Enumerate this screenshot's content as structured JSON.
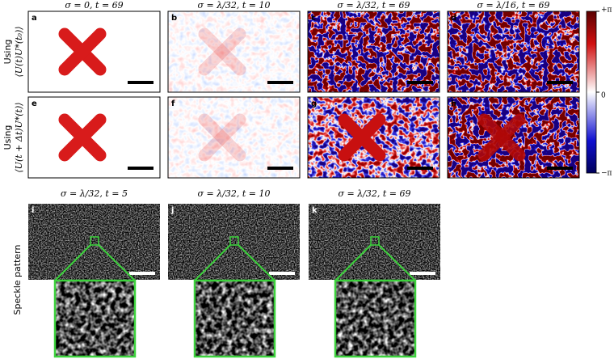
{
  "columns": [
    "σ = 0, t = 69",
    "σ = λ/32, t = 10",
    "σ = λ/32, t = 69",
    "σ = λ/16, t = 69"
  ],
  "rows": [
    {
      "prefix": "Using",
      "label": "⟨U(t)U*(t₀)⟩"
    },
    {
      "prefix": "Using",
      "label": "⟨U(t + Δt)U*(t)⟩"
    }
  ],
  "panels": [
    "a",
    "b",
    "c",
    "d",
    "e",
    "f",
    "g",
    "h",
    "i",
    "j",
    "k"
  ],
  "colorbar": {
    "top": "+π",
    "middle": "0",
    "bottom": "−π"
  },
  "speckle": {
    "label": "Speckle pattern",
    "titles": [
      "σ = λ/32, t = 5",
      "σ = λ/32, t = 10",
      "σ = λ/32, t = 69"
    ]
  }
}
